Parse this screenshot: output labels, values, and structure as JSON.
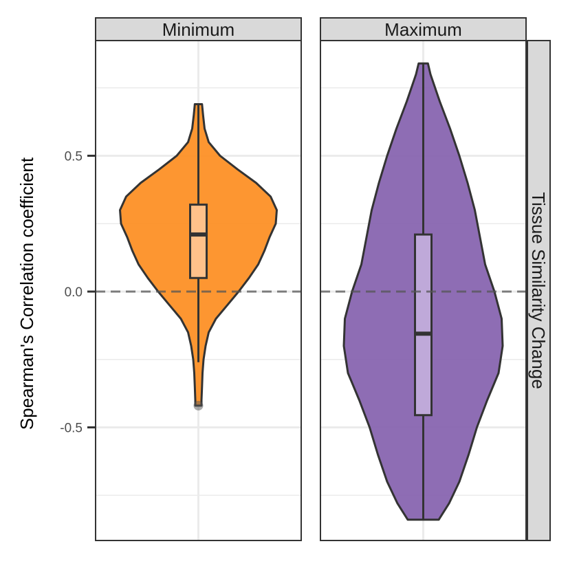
{
  "chart_data": {
    "type": "violin",
    "ylabel": "Spearman's Correlation coefficient",
    "facet_label": "Tissue Similarity Change",
    "ylim": [
      -0.92,
      0.92
    ],
    "y_ticks": [
      {
        "value": -0.5,
        "label": "-0.5"
      },
      {
        "value": 0.0,
        "label": "0.0"
      },
      {
        "value": 0.5,
        "label": "0.5"
      }
    ],
    "reference_line": 0.0,
    "grid": true,
    "panels": [
      {
        "name": "Minimum",
        "color": "#fd8d20",
        "box_color": "#ffc18a",
        "violin": [
          [
            0.69,
            0.035
          ],
          [
            0.65,
            0.045
          ],
          [
            0.6,
            0.06
          ],
          [
            0.55,
            0.1
          ],
          [
            0.5,
            0.21
          ],
          [
            0.45,
            0.38
          ],
          [
            0.4,
            0.56
          ],
          [
            0.35,
            0.7
          ],
          [
            0.3,
            0.76
          ],
          [
            0.25,
            0.75
          ],
          [
            0.2,
            0.69
          ],
          [
            0.15,
            0.64
          ],
          [
            0.1,
            0.58
          ],
          [
            0.05,
            0.49
          ],
          [
            0.0,
            0.39
          ],
          [
            -0.05,
            0.28
          ],
          [
            -0.1,
            0.17
          ],
          [
            -0.15,
            0.1
          ],
          [
            -0.2,
            0.07
          ],
          [
            -0.25,
            0.05
          ],
          [
            -0.3,
            0.04
          ],
          [
            -0.35,
            0.035
          ],
          [
            -0.4,
            0.03
          ],
          [
            -0.42,
            0.03
          ]
        ],
        "box": {
          "q1": 0.05,
          "median": 0.21,
          "q3": 0.32,
          "whisker_low": -0.26,
          "whisker_high": 0.69
        },
        "outliers": [
          -0.42
        ]
      },
      {
        "name": "Maximum",
        "color": "#8461ae",
        "box_color": "#bfa9d9",
        "violin": [
          [
            0.84,
            0.045
          ],
          [
            0.8,
            0.07
          ],
          [
            0.7,
            0.16
          ],
          [
            0.6,
            0.26
          ],
          [
            0.5,
            0.35
          ],
          [
            0.4,
            0.43
          ],
          [
            0.3,
            0.5
          ],
          [
            0.2,
            0.55
          ],
          [
            0.1,
            0.6
          ],
          [
            0.0,
            0.69
          ],
          [
            -0.1,
            0.76
          ],
          [
            -0.2,
            0.77
          ],
          [
            -0.3,
            0.73
          ],
          [
            -0.4,
            0.62
          ],
          [
            -0.5,
            0.52
          ],
          [
            -0.6,
            0.44
          ],
          [
            -0.7,
            0.35
          ],
          [
            -0.78,
            0.25
          ],
          [
            -0.84,
            0.15
          ]
        ],
        "box": {
          "q1": -0.455,
          "median": -0.155,
          "q3": 0.21,
          "whisker_low": -0.84,
          "whisker_high": 0.84
        },
        "outliers": []
      }
    ]
  }
}
